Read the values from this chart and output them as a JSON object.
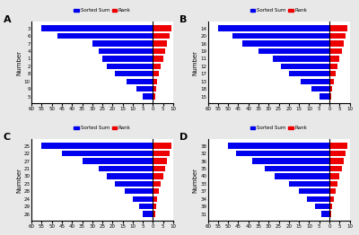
{
  "panels": {
    "A": {
      "label": "A",
      "y_labels_top_to_bottom": [
        "3",
        "6",
        "7",
        "4",
        "1",
        "2",
        "8",
        "10",
        "9",
        "5"
      ],
      "blue_values_top_to_bottom": [
        55,
        47,
        30,
        27,
        25,
        23,
        19,
        13,
        8,
        5
      ],
      "red_values_top_to_bottom": [
        9,
        8,
        7,
        6,
        5,
        4,
        3,
        2,
        1.5,
        1
      ]
    },
    "B": {
      "label": "B",
      "y_labels_top_to_bottom": [
        "14",
        "20",
        "16",
        "19",
        "11",
        "12",
        "17",
        "13",
        "18",
        "15"
      ],
      "blue_values_top_to_bottom": [
        55,
        48,
        43,
        35,
        28,
        24,
        20,
        14,
        9,
        5
      ],
      "red_values_top_to_bottom": [
        9,
        8,
        7,
        6,
        5,
        4,
        3,
        2,
        1.5,
        1
      ]
    },
    "C": {
      "label": "C",
      "y_labels_top_to_bottom": [
        "25",
        "22",
        "27",
        "21",
        "30",
        "23",
        "28",
        "24",
        "29",
        "26"
      ],
      "blue_values_top_to_bottom": [
        55,
        45,
        35,
        27,
        23,
        19,
        14,
        10,
        7,
        5
      ],
      "red_values_top_to_bottom": [
        9,
        8,
        7,
        6,
        5,
        4,
        3,
        2,
        1.5,
        1
      ]
    },
    "D": {
      "label": "D",
      "y_labels_top_to_bottom": [
        "38",
        "32",
        "36",
        "35",
        "40",
        "33",
        "37",
        "34",
        "39",
        "31"
      ],
      "blue_values_top_to_bottom": [
        50,
        46,
        38,
        32,
        27,
        20,
        15,
        11,
        7,
        4
      ],
      "red_values_top_to_bottom": [
        9,
        8,
        7,
        6,
        5,
        4,
        3,
        2,
        1.5,
        1
      ]
    }
  },
  "blue_color": "#0000ee",
  "red_color": "#ee0000",
  "ylabel": "Number",
  "bar_height": 0.75,
  "bg_color": "#ffffff",
  "fig_bg": "#e8e8e8",
  "legend_blue": "Sorted Sum",
  "legend_red": "Rank"
}
